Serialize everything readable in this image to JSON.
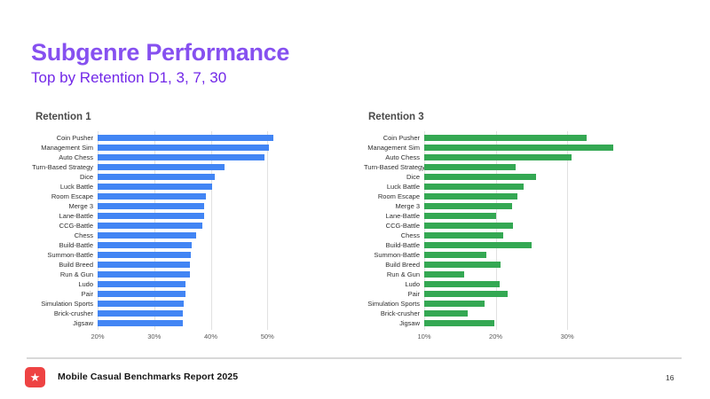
{
  "page": {
    "title": "Subgenre Performance",
    "subtitle": "Top by Retention D1, 3, 7, 30",
    "page_number": "16"
  },
  "footer": {
    "brand": "Mobile Casual Benchmarks Report 2025",
    "icon": "star-icon",
    "star_glyph": "★"
  },
  "colors": {
    "title_color": "#8650f0",
    "subtitle_color": "#7228e8",
    "bar_blue": "#4285f4",
    "bar_green": "#34a853",
    "gridline": "#e1e1e1",
    "footer_icon_bg": "#ee4343"
  },
  "chart_data": [
    {
      "type": "bar",
      "orientation": "horizontal",
      "title": "Retention 1",
      "color": "#4285f4",
      "unit": "%",
      "axis": {
        "min": 20,
        "max": 60,
        "ticks": [
          20,
          30,
          40,
          50
        ],
        "tick_labels": [
          "20%",
          "30%",
          "40%",
          "50%"
        ]
      },
      "categories": [
        "Coin Pusher",
        "Management Sim",
        "Auto Chess",
        "Turn-Based Strategy",
        "Dice",
        "Luck Battle",
        "Room Escape",
        "Merge 3",
        "Lane-Battle",
        "CCG-Battle",
        "Chess",
        "Build-Battle",
        "Summon-Battle",
        "Build Breed",
        "Run & Gun",
        "Ludo",
        "Pair",
        "Simulation Sports",
        "Brick-crusher",
        "Jigsaw"
      ],
      "values": [
        51.0,
        50.3,
        49.5,
        42.5,
        40.7,
        40.3,
        39.1,
        38.9,
        38.8,
        38.5,
        37.4,
        36.6,
        36.5,
        36.3,
        36.3,
        35.6,
        35.5,
        35.2,
        35.1,
        35.0
      ]
    },
    {
      "type": "bar",
      "orientation": "horizontal",
      "title": "Retention 3",
      "color": "#34a853",
      "unit": "%",
      "axis": {
        "min": 10,
        "max": 46,
        "ticks": [
          10,
          20,
          30
        ],
        "tick_labels": [
          "10%",
          "20%",
          "30%"
        ]
      },
      "categories": [
        "Coin Pusher",
        "Management Sim",
        "Auto Chess",
        "Turn-Based Strategy",
        "Dice",
        "Luck Battle",
        "Room Escape",
        "Merge 3",
        "Lane-Battle",
        "CCG-Battle",
        "Chess",
        "Build-Battle",
        "Summon-Battle",
        "Build Breed",
        "Run & Gun",
        "Ludo",
        "Pair",
        "Simulation Sports",
        "Brick-crusher",
        "Jigsaw"
      ],
      "values": [
        32.7,
        36.5,
        30.6,
        22.8,
        25.6,
        23.9,
        23.0,
        22.3,
        20.1,
        22.4,
        21.1,
        25.0,
        18.7,
        20.7,
        15.6,
        20.6,
        21.7,
        18.4,
        16.1,
        19.8
      ]
    }
  ]
}
